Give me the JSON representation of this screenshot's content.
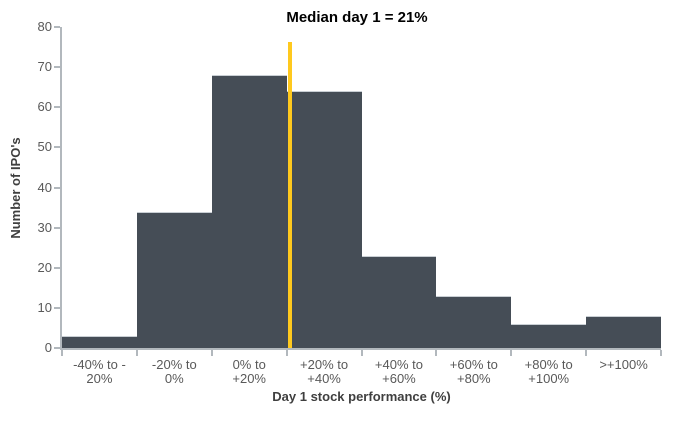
{
  "chart_data": {
    "type": "bar",
    "subtype": "histogram",
    "annotation": "Median day 1 = 21%",
    "median_value": 21,
    "categories": [
      "-40% to -\n20%",
      "-20% to\n0%",
      "0% to\n+20%",
      "+20% to\n+40%",
      "+40% to\n+60%",
      "+60% to\n+80%",
      "+80% to\n+100%",
      ">+100%"
    ],
    "values": [
      3,
      34,
      68,
      64,
      23,
      13,
      6,
      8
    ],
    "xlabel": "Day 1 stock performance (%)",
    "ylabel": "Number of IPO's",
    "ylim": [
      0,
      80
    ],
    "ytick_step": 10,
    "x_bin_start": -40,
    "x_bin_width": 20,
    "grid": false,
    "legend": false,
    "colors": {
      "bar": "#454D56",
      "bar_edge": "#C9CFD4",
      "median_line": "#FFC91E",
      "axis": "#B2B8BD",
      "tick_label": "#595959",
      "axis_title": "#3F3F3F",
      "annotation": "#000000",
      "background": "#FFFFFF"
    }
  }
}
